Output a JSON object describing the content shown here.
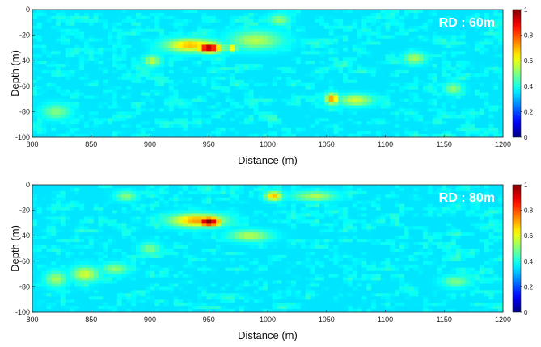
{
  "chart_data": [
    {
      "type": "heatmap",
      "annotation": "RD : 60m",
      "xlabel": "Distance (m)",
      "ylabel": "Depth (m)",
      "xlim": [
        800,
        1200
      ],
      "ylim": [
        -100,
        0
      ],
      "x_ticks": [
        "800",
        "850",
        "900",
        "950",
        "1000",
        "1050",
        "1100",
        "1150",
        "1200"
      ],
      "y_ticks": [
        "0",
        "-20",
        "-40",
        "-60",
        "-80",
        "-100"
      ],
      "colorbar": {
        "min": 0,
        "max": 1,
        "ticks": [
          "1",
          "0.8",
          "0.6",
          "0.4",
          "0.2",
          "0"
        ]
      },
      "background_level": 0.35,
      "hotspots": [
        {
          "x": 950,
          "y": -30,
          "value": 1.0,
          "sx": 7,
          "sy": 2.5
        },
        {
          "x": 935,
          "y": -28,
          "value": 0.7,
          "sx": 15,
          "sy": 3.5
        },
        {
          "x": 970,
          "y": -30,
          "value": 0.68,
          "sx": 3,
          "sy": 2
        },
        {
          "x": 990,
          "y": -24,
          "value": 0.55,
          "sx": 15,
          "sy": 5
        },
        {
          "x": 1055,
          "y": -70,
          "value": 0.74,
          "sx": 4,
          "sy": 3
        },
        {
          "x": 1075,
          "y": -71,
          "value": 0.58,
          "sx": 10,
          "sy": 3
        },
        {
          "x": 902,
          "y": -40,
          "value": 0.56,
          "sx": 5,
          "sy": 3
        },
        {
          "x": 1125,
          "y": -38,
          "value": 0.55,
          "sx": 6,
          "sy": 3
        },
        {
          "x": 1158,
          "y": -62,
          "value": 0.52,
          "sx": 5,
          "sy": 3
        },
        {
          "x": 820,
          "y": -80,
          "value": 0.5,
          "sx": 8,
          "sy": 4
        },
        {
          "x": 1010,
          "y": -8,
          "value": 0.52,
          "sx": 6,
          "sy": 3
        }
      ]
    },
    {
      "type": "heatmap",
      "annotation": "RD : 80m",
      "xlabel": "Distance (m)",
      "ylabel": "Depth (m)",
      "xlim": [
        800,
        1200
      ],
      "ylim": [
        -100,
        0
      ],
      "x_ticks": [
        "800",
        "850",
        "900",
        "950",
        "1000",
        "1050",
        "1100",
        "1150",
        "1200"
      ],
      "y_ticks": [
        "0",
        "-20",
        "-40",
        "-60",
        "-80",
        "-100"
      ],
      "colorbar": {
        "min": 0,
        "max": 1,
        "ticks": [
          "1",
          "0.8",
          "0.6",
          "0.4",
          "0.2",
          "0"
        ]
      },
      "background_level": 0.35,
      "hotspots": [
        {
          "x": 950,
          "y": -29,
          "value": 1.0,
          "sx": 7,
          "sy": 2.5
        },
        {
          "x": 940,
          "y": -28,
          "value": 0.72,
          "sx": 16,
          "sy": 3.5
        },
        {
          "x": 1005,
          "y": -9,
          "value": 0.7,
          "sx": 5,
          "sy": 2.5
        },
        {
          "x": 1040,
          "y": -9,
          "value": 0.55,
          "sx": 12,
          "sy": 2.5
        },
        {
          "x": 985,
          "y": -40,
          "value": 0.55,
          "sx": 12,
          "sy": 3
        },
        {
          "x": 845,
          "y": -70,
          "value": 0.58,
          "sx": 8,
          "sy": 4
        },
        {
          "x": 820,
          "y": -74,
          "value": 0.55,
          "sx": 6,
          "sy": 4
        },
        {
          "x": 870,
          "y": -66,
          "value": 0.52,
          "sx": 8,
          "sy": 3
        },
        {
          "x": 880,
          "y": -9,
          "value": 0.52,
          "sx": 6,
          "sy": 2.5
        },
        {
          "x": 900,
          "y": -50,
          "value": 0.5,
          "sx": 6,
          "sy": 3
        },
        {
          "x": 1160,
          "y": -76,
          "value": 0.5,
          "sx": 8,
          "sy": 3
        }
      ]
    }
  ]
}
